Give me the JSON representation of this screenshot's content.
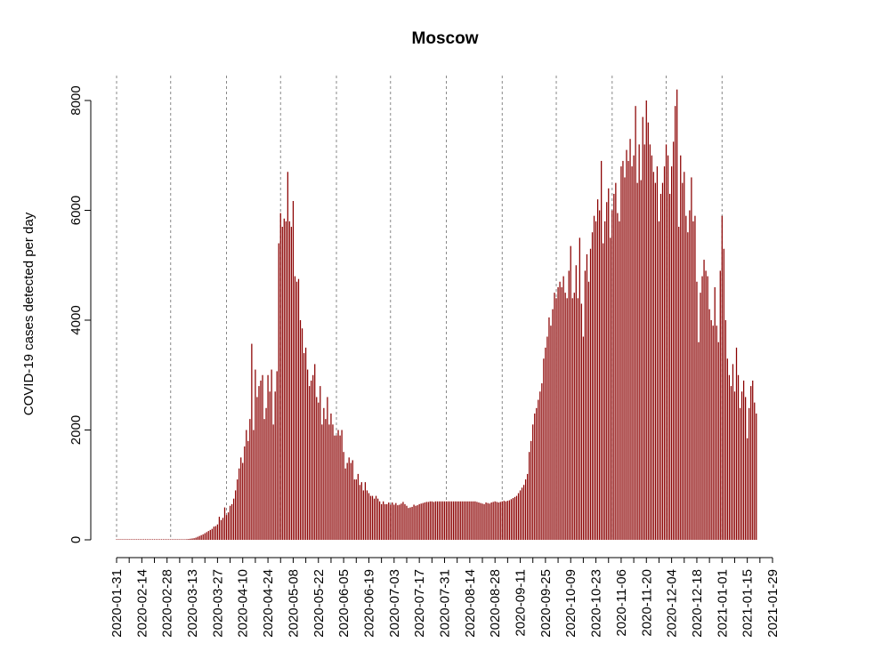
{
  "chart_data": {
    "type": "bar",
    "title": "Moscow",
    "xlabel": "",
    "ylabel": "COVID-19 cases detected per day",
    "x_start": "2020-01-31",
    "x_end": "2021-01-29",
    "ylim": [
      0,
      8200
    ],
    "yticks": [
      0,
      2000,
      4000,
      6000,
      8000
    ],
    "xtick_labels": [
      "2020-01-31",
      "2020-02-14",
      "2020-02-28",
      "2020-03-13",
      "2020-03-27",
      "2020-04-10",
      "2020-04-24",
      "2020-05-08",
      "2020-05-22",
      "2020-06-05",
      "2020-06-19",
      "2020-07-03",
      "2020-07-17",
      "2020-07-31",
      "2020-08-14",
      "2020-08-28",
      "2020-09-11",
      "2020-09-25",
      "2020-10-09",
      "2020-10-23",
      "2020-11-06",
      "2020-11-20",
      "2020-12-04",
      "2020-12-18",
      "2021-01-01",
      "2021-01-15",
      "2021-01-29"
    ],
    "vlines": [
      "2020-01-31",
      "2020-03-01",
      "2020-04-01",
      "2020-05-01",
      "2020-06-01",
      "2020-07-01",
      "2020-08-01",
      "2020-09-01",
      "2020-10-01",
      "2020-11-01",
      "2020-12-01",
      "2021-01-01"
    ],
    "grid": false,
    "bar_color": "#8b0000",
    "vline_color": "#888888",
    "values": [
      0,
      0,
      0,
      0,
      0,
      0,
      0,
      0,
      0,
      0,
      0,
      0,
      0,
      0,
      0,
      0,
      0,
      0,
      0,
      0,
      0,
      0,
      0,
      0,
      0,
      0,
      0,
      0,
      0,
      0,
      0,
      0,
      0,
      0,
      0,
      1,
      3,
      5,
      8,
      12,
      15,
      20,
      25,
      30,
      40,
      55,
      70,
      85,
      100,
      120,
      140,
      160,
      180,
      200,
      240,
      250,
      280,
      420,
      360,
      400,
      590,
      450,
      500,
      620,
      650,
      750,
      900,
      1100,
      1300,
      1500,
      1400,
      1700,
      2000,
      1800,
      2200,
      3570,
      2000,
      3100,
      2600,
      2800,
      2900,
      3000,
      2200,
      2400,
      3000,
      2700,
      3100,
      2100,
      2700,
      3070,
      5400,
      5950,
      5700,
      5850,
      5800,
      6700,
      5800,
      5700,
      6170,
      4800,
      4700,
      4750,
      4000,
      3850,
      3400,
      3500,
      3100,
      2800,
      2900,
      3000,
      3200,
      2600,
      2500,
      2800,
      2100,
      2400,
      2200,
      2600,
      2100,
      2300,
      2100,
      1900,
      1900,
      2000,
      1900,
      2000,
      1600,
      1300,
      1400,
      1500,
      1400,
      1450,
      1100,
      1100,
      1200,
      1000,
      1050,
      900,
      1050,
      900,
      850,
      800,
      800,
      750,
      800,
      750,
      700,
      650,
      700,
      650,
      650,
      680,
      640,
      680,
      640,
      670,
      630,
      640,
      660,
      690,
      650,
      620,
      580,
      590,
      600,
      640,
      620,
      630,
      650,
      660,
      670,
      680,
      690,
      690,
      700,
      700,
      690,
      700,
      700,
      700,
      700,
      700,
      700,
      700,
      700,
      700,
      700,
      700,
      700,
      700,
      700,
      700,
      700,
      700,
      700,
      700,
      700,
      700,
      700,
      700,
      690,
      680,
      670,
      660,
      650,
      680,
      670,
      660,
      680,
      690,
      700,
      690,
      680,
      690,
      700,
      710,
      700,
      710,
      720,
      740,
      760,
      780,
      800,
      850,
      900,
      950,
      1000,
      1100,
      1200,
      1600,
      1800,
      2100,
      2300,
      2400,
      2550,
      2700,
      2850,
      3300,
      3500,
      3700,
      4050,
      3900,
      4200,
      4500,
      4400,
      4600,
      4700,
      4600,
      4800,
      4500,
      4400,
      4900,
      5350,
      4400,
      4500,
      5000,
      4400,
      5500,
      4300,
      3700,
      4900,
      5200,
      4700,
      5300,
      5600,
      5900,
      5800,
      6200,
      6000,
      6900,
      5400,
      5800,
      6150,
      6400,
      5500,
      6000,
      6300,
      6500,
      5950,
      5800,
      6800,
      6900,
      6600,
      7100,
      6900,
      7300,
      6800,
      7000,
      7900,
      6500,
      7200,
      6550,
      7700,
      7200,
      8000,
      7600,
      7200,
      7000,
      6700,
      6500,
      6800,
      5800,
      6300,
      6500,
      6800,
      7200,
      7000,
      6300,
      6800,
      7250,
      7900,
      8200,
      5700,
      7000,
      6500,
      6700,
      5900,
      5600,
      6000,
      6600,
      5800,
      5900,
      4700,
      3600,
      4500,
      4800,
      5100,
      4900,
      4800,
      4200,
      4000,
      3900,
      4600,
      3900,
      3600,
      4900,
      5900,
      5300,
      4000,
      3300,
      3000,
      2800,
      3200,
      2700,
      3500,
      3000,
      2400,
      2700,
      2900,
      2600,
      1850,
      2400,
      2800,
      2900,
      2500,
      2300
    ]
  }
}
